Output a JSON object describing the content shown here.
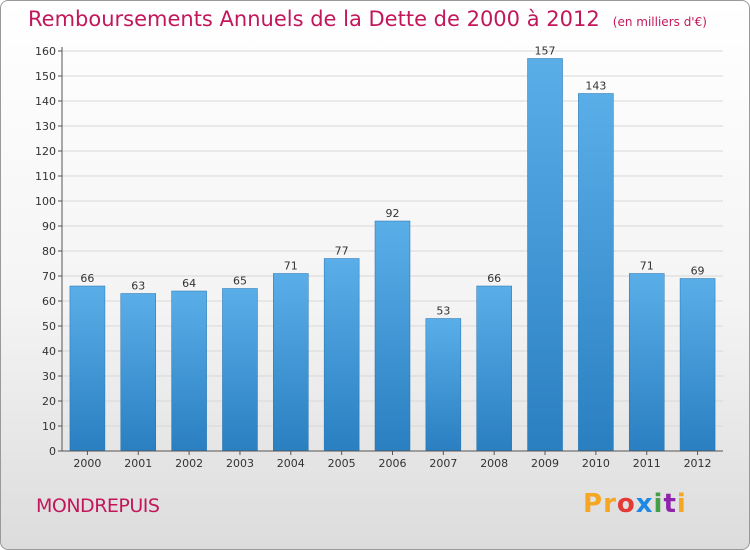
{
  "title": "Remboursements Annuels de la Dette de 2000 à 2012",
  "unit_note": "(en milliers d'€)",
  "town": "MONDREPUIS",
  "logo": [
    "P",
    "r",
    "o",
    "x",
    "i",
    "t",
    "i"
  ],
  "colors": {
    "accent": "#c2185b",
    "bar_light": "#5aaee8",
    "bar_dark": "#2a7fc1",
    "grid": "#d8d8d8",
    "logo": [
      "#f5a623",
      "#f5a623",
      "#e53935",
      "#1e88e5",
      "#43a047",
      "#8e24aa",
      "#f5a623"
    ]
  },
  "chart_data": {
    "type": "bar",
    "categories": [
      "2000",
      "2001",
      "2002",
      "2003",
      "2004",
      "2005",
      "2006",
      "2007",
      "2008",
      "2009",
      "2010",
      "2011",
      "2012"
    ],
    "values": [
      66,
      63,
      64,
      65,
      71,
      77,
      92,
      53,
      66,
      157,
      143,
      71,
      69
    ],
    "ylim": [
      0,
      160
    ],
    "yticks": [
      0,
      10,
      20,
      30,
      40,
      50,
      60,
      70,
      80,
      90,
      100,
      110,
      120,
      130,
      140,
      150,
      160
    ],
    "grid": true,
    "legend": "none"
  }
}
